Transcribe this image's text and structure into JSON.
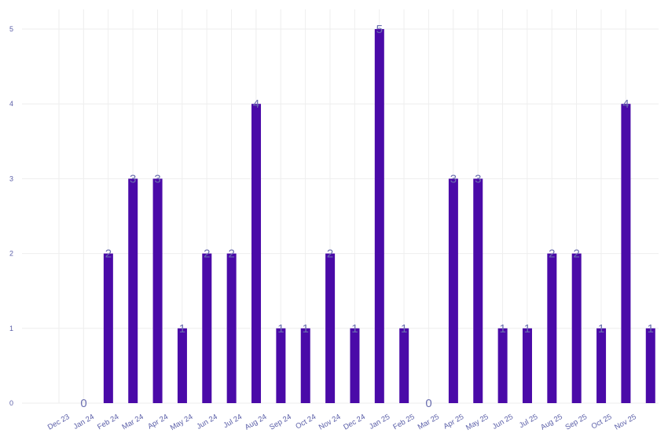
{
  "chart_data": {
    "type": "bar",
    "categories": [
      "Dec 23",
      "Jan 24",
      "Feb 24",
      "Mar 24",
      "Apr 24",
      "May 24",
      "Jun 24",
      "Jul 24",
      "Aug 24",
      "Sep 24",
      "Oct 24",
      "Nov 24",
      "Dec 24",
      "Jan 25",
      "Feb 25",
      "Mar 25",
      "Apr 25",
      "May 25",
      "Jun 25",
      "Jul 25",
      "Aug 25",
      "Sep 25",
      "Oct 25",
      "Nov 25"
    ],
    "values": [
      0,
      2,
      3,
      3,
      1,
      2,
      2,
      4,
      1,
      1,
      2,
      1,
      5,
      1,
      0,
      3,
      3,
      1,
      1,
      2,
      2,
      1,
      4,
      1
    ],
    "title": "",
    "xlabel": "",
    "ylabel": "",
    "ylim": [
      0,
      5
    ],
    "yticks": [
      0,
      1,
      2,
      3,
      4,
      5
    ],
    "grid": true,
    "legend": "none",
    "data_labels": true,
    "colors": {
      "bar": "#4a0aa8",
      "label": "#6b6fb0",
      "tick": "#5b5fa8",
      "grid": "#eeeeee"
    }
  }
}
